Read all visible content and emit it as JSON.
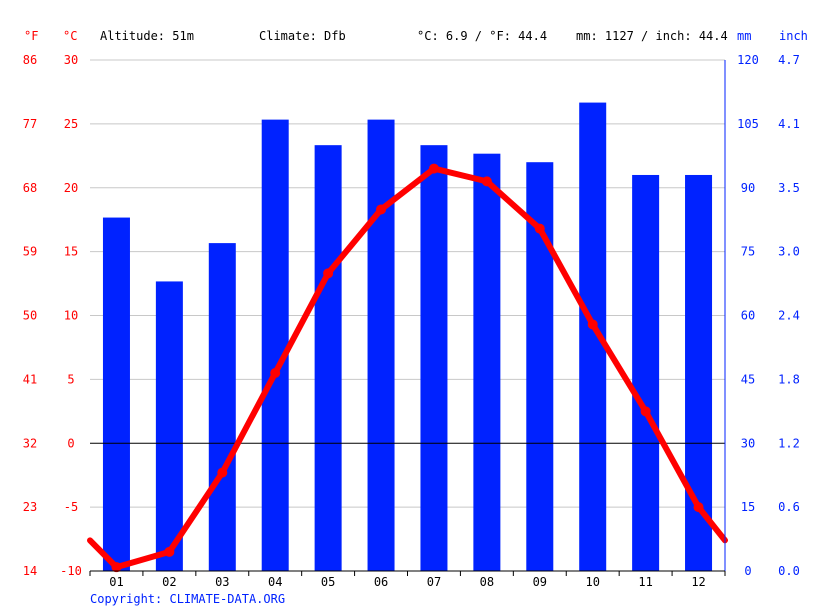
{
  "header": {
    "unit_f": "°F",
    "unit_c": "°C",
    "altitude": "Altitude: 51m",
    "climate": "Climate: Dfb",
    "avg_temp": "°C: 6.9 / °F: 44.4",
    "avg_precip": "mm: 1127 / inch: 44.4",
    "unit_mm": "mm",
    "unit_inch": "inch"
  },
  "copyright": "Copyright: CLIMATE-DATA.ORG",
  "colors": {
    "temperature": "#ff0000",
    "precipitation": "#0022ff",
    "grid": "#c8c8c8",
    "zero_line": "#000000",
    "text": "#000000"
  },
  "chart_data": {
    "type": "bar+line",
    "categories": [
      "01",
      "02",
      "03",
      "04",
      "05",
      "06",
      "07",
      "08",
      "09",
      "10",
      "11",
      "12"
    ],
    "series": [
      {
        "name": "Precipitation (mm)",
        "type": "bar",
        "axis": "right",
        "values": [
          83,
          68,
          77,
          106,
          100,
          106,
          100,
          98,
          96,
          110,
          93,
          93
        ]
      },
      {
        "name": "Temperature (°C)",
        "type": "line",
        "axis": "left",
        "values": [
          -9.7,
          -8.5,
          -2.3,
          5.5,
          13.3,
          18.3,
          21.5,
          20.5,
          16.8,
          9.3,
          2.5,
          -5.0
        ],
        "edge_values": [
          -7.6,
          -7.6
        ]
      }
    ],
    "left_axis": {
      "label_c": "°C",
      "label_f": "°F",
      "ylim": [
        -10,
        30
      ],
      "ticks_c": [
        "-10",
        "-5",
        "0",
        "5",
        "10",
        "15",
        "20",
        "25",
        "30"
      ],
      "ticks_f": [
        "14",
        "23",
        "32",
        "41",
        "50",
        "59",
        "68",
        "77",
        "86"
      ]
    },
    "right_axis": {
      "label_mm": "mm",
      "label_inch": "inch",
      "ylim": [
        0,
        120
      ],
      "ticks_mm": [
        "0",
        "15",
        "30",
        "45",
        "60",
        "75",
        "90",
        "105",
        "120"
      ],
      "ticks_inch": [
        "0.0",
        "0.6",
        "1.2",
        "1.8",
        "2.4",
        "3.0",
        "3.5",
        "4.1",
        "4.7"
      ]
    },
    "grid": true
  }
}
